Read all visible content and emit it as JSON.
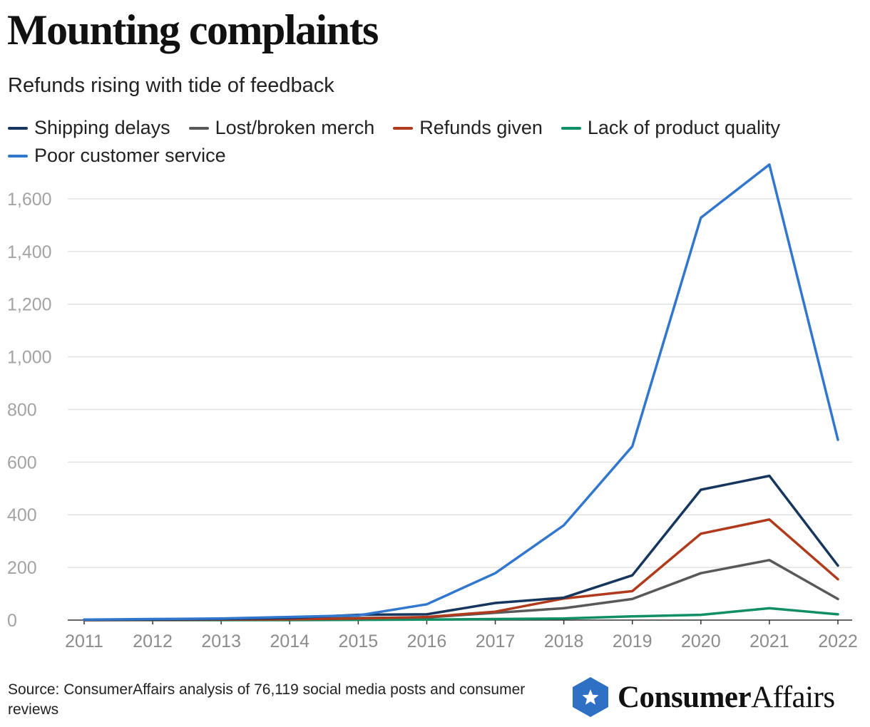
{
  "title": "Mounting complaints",
  "subtitle": "Refunds rising with tide of feedback",
  "source": "Source: ConsumerAffairs analysis of 76,119 social media posts and consumer reviews",
  "brand": {
    "name_bold": "Consumer",
    "name_regular": "Affairs",
    "badge_icon": "star-icon",
    "badge_color": "#2f6fc4"
  },
  "chart_data": {
    "type": "line",
    "title": "Mounting complaints",
    "subtitle": "Refunds rising with tide of feedback",
    "xlabel": "",
    "ylabel": "",
    "x": [
      "2011",
      "2012",
      "2013",
      "2014",
      "2015",
      "2016",
      "2017",
      "2018",
      "2019",
      "2020",
      "2021",
      "2022"
    ],
    "ylim": [
      0,
      1700
    ],
    "yticks": [
      0,
      200,
      400,
      600,
      800,
      1000,
      1200,
      1400,
      1600
    ],
    "ytick_labels": [
      "0",
      "200",
      "400",
      "600",
      "800",
      "1,000",
      "1,200",
      "1,400",
      "1,600"
    ],
    "grid": true,
    "legend_position": "top",
    "series": [
      {
        "name": "Shipping delays",
        "color": "#17365d",
        "values": [
          1,
          2,
          4,
          8,
          20,
          22,
          65,
          85,
          170,
          495,
          548,
          207
        ]
      },
      {
        "name": "Lost/broken merch",
        "color": "#58595b",
        "values": [
          1,
          1,
          2,
          4,
          8,
          10,
          28,
          45,
          80,
          178,
          228,
          80
        ]
      },
      {
        "name": "Refunds given",
        "color": "#b03a1c",
        "values": [
          0,
          1,
          2,
          3,
          6,
          12,
          32,
          82,
          110,
          328,
          382,
          155
        ]
      },
      {
        "name": "Lack of product quality",
        "color": "#0f8f63",
        "values": [
          0,
          0,
          0,
          0,
          1,
          2,
          4,
          6,
          14,
          20,
          45,
          22
        ]
      },
      {
        "name": "Poor customer service",
        "color": "#3077cd",
        "values": [
          2,
          4,
          6,
          12,
          18,
          60,
          178,
          360,
          660,
          1528,
          1730,
          685
        ]
      }
    ]
  }
}
